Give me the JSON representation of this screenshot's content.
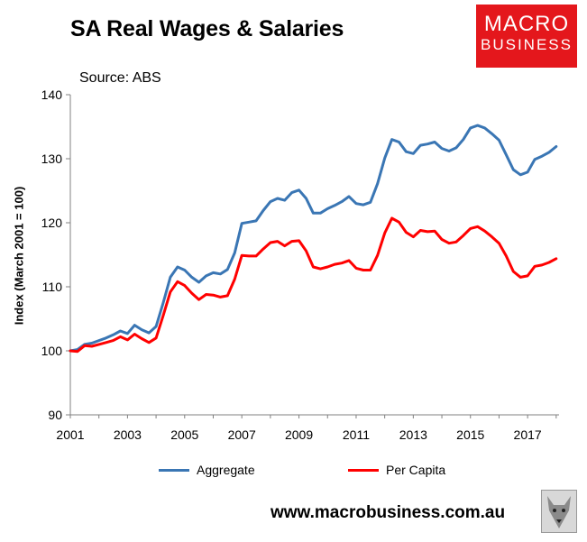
{
  "header": {
    "title": "SA Real Wages & Salaries",
    "source": "Source: ABS"
  },
  "logo": {
    "line1": "MACRO",
    "line2": "BUSINESS",
    "color": "#e4171c"
  },
  "footer": {
    "website": "www.macrobusiness.com.au",
    "mascot_icon": "wolf-logo-icon"
  },
  "chart_data": {
    "type": "line",
    "title": "SA Real Wages & Salaries",
    "ylabel": "Index (March 2001 = 100)",
    "xlabel": "",
    "ylim": [
      90,
      140
    ],
    "yticks": [
      90,
      100,
      110,
      120,
      130,
      140
    ],
    "xlim": [
      2001,
      2018.1
    ],
    "xticks": [
      "2001",
      "2003",
      "2005",
      "2007",
      "2009",
      "2011",
      "2013",
      "2015",
      "2017"
    ],
    "grid": false,
    "legend_position": "bottom",
    "series": [
      {
        "name": "Aggregate",
        "color": "#3a76b4",
        "x": [
          2001.0,
          2001.25,
          2001.5,
          2001.75,
          2002.0,
          2002.25,
          2002.5,
          2002.75,
          2003.0,
          2003.25,
          2003.5,
          2003.75,
          2004.0,
          2004.25,
          2004.5,
          2004.75,
          2005.0,
          2005.25,
          2005.5,
          2005.75,
          2006.0,
          2006.25,
          2006.5,
          2006.75,
          2007.0,
          2007.25,
          2007.5,
          2007.75,
          2008.0,
          2008.25,
          2008.5,
          2008.75,
          2009.0,
          2009.25,
          2009.5,
          2009.75,
          2010.0,
          2010.25,
          2010.5,
          2010.75,
          2011.0,
          2011.25,
          2011.5,
          2011.75,
          2012.0,
          2012.25,
          2012.5,
          2012.75,
          2013.0,
          2013.25,
          2013.5,
          2013.75,
          2014.0,
          2014.25,
          2014.5,
          2014.75,
          2015.0,
          2015.25,
          2015.5,
          2015.75,
          2016.0,
          2016.25,
          2016.5,
          2016.75,
          2017.0,
          2017.25,
          2017.5,
          2017.75,
          2018.0
        ],
        "values": [
          100.0,
          100.2,
          101.0,
          101.2,
          101.6,
          102.0,
          102.5,
          103.1,
          102.7,
          104.0,
          103.3,
          102.8,
          103.8,
          107.5,
          111.5,
          113.1,
          112.6,
          111.5,
          110.7,
          111.7,
          112.2,
          112.0,
          112.7,
          115.3,
          119.9,
          120.1,
          120.3,
          121.9,
          123.3,
          123.8,
          123.5,
          124.7,
          125.1,
          123.8,
          121.5,
          121.5,
          122.2,
          122.7,
          123.3,
          124.1,
          123.0,
          122.8,
          123.2,
          126.1,
          130.1,
          133.0,
          132.6,
          131.1,
          130.8,
          132.1,
          132.3,
          132.6,
          131.6,
          131.2,
          131.7,
          133.0,
          134.8,
          135.2,
          134.8,
          133.9,
          132.9,
          130.6,
          128.3,
          127.5,
          127.9,
          129.9,
          130.4,
          131.0,
          131.9
        ]
      },
      {
        "name": "Per Capita",
        "color": "#ff0000",
        "x": [
          2001.0,
          2001.25,
          2001.5,
          2001.75,
          2002.0,
          2002.25,
          2002.5,
          2002.75,
          2003.0,
          2003.25,
          2003.5,
          2003.75,
          2004.0,
          2004.25,
          2004.5,
          2004.75,
          2005.0,
          2005.25,
          2005.5,
          2005.75,
          2006.0,
          2006.25,
          2006.5,
          2006.75,
          2007.0,
          2007.25,
          2007.5,
          2007.75,
          2008.0,
          2008.25,
          2008.5,
          2008.75,
          2009.0,
          2009.25,
          2009.5,
          2009.75,
          2010.0,
          2010.25,
          2010.5,
          2010.75,
          2011.0,
          2011.25,
          2011.5,
          2011.75,
          2012.0,
          2012.25,
          2012.5,
          2012.75,
          2013.0,
          2013.25,
          2013.5,
          2013.75,
          2014.0,
          2014.25,
          2014.5,
          2014.75,
          2015.0,
          2015.25,
          2015.5,
          2015.75,
          2016.0,
          2016.25,
          2016.5,
          2016.75,
          2017.0,
          2017.25,
          2017.5,
          2017.75,
          2018.0
        ],
        "values": [
          100.0,
          99.9,
          100.8,
          100.7,
          101.0,
          101.3,
          101.6,
          102.2,
          101.7,
          102.6,
          101.9,
          101.3,
          102.0,
          105.5,
          109.2,
          110.8,
          110.2,
          109.0,
          108.0,
          108.8,
          108.7,
          108.4,
          108.6,
          111.2,
          114.9,
          114.8,
          114.8,
          115.9,
          116.9,
          117.1,
          116.4,
          117.1,
          117.2,
          115.6,
          113.1,
          112.8,
          113.1,
          113.5,
          113.7,
          114.1,
          112.9,
          112.6,
          112.6,
          114.9,
          118.4,
          120.7,
          120.1,
          118.5,
          117.8,
          118.8,
          118.6,
          118.7,
          117.4,
          116.8,
          117.0,
          118.0,
          119.1,
          119.4,
          118.7,
          117.8,
          116.8,
          114.8,
          112.4,
          111.5,
          111.7,
          113.2,
          113.4,
          113.8,
          114.4
        ]
      }
    ]
  }
}
